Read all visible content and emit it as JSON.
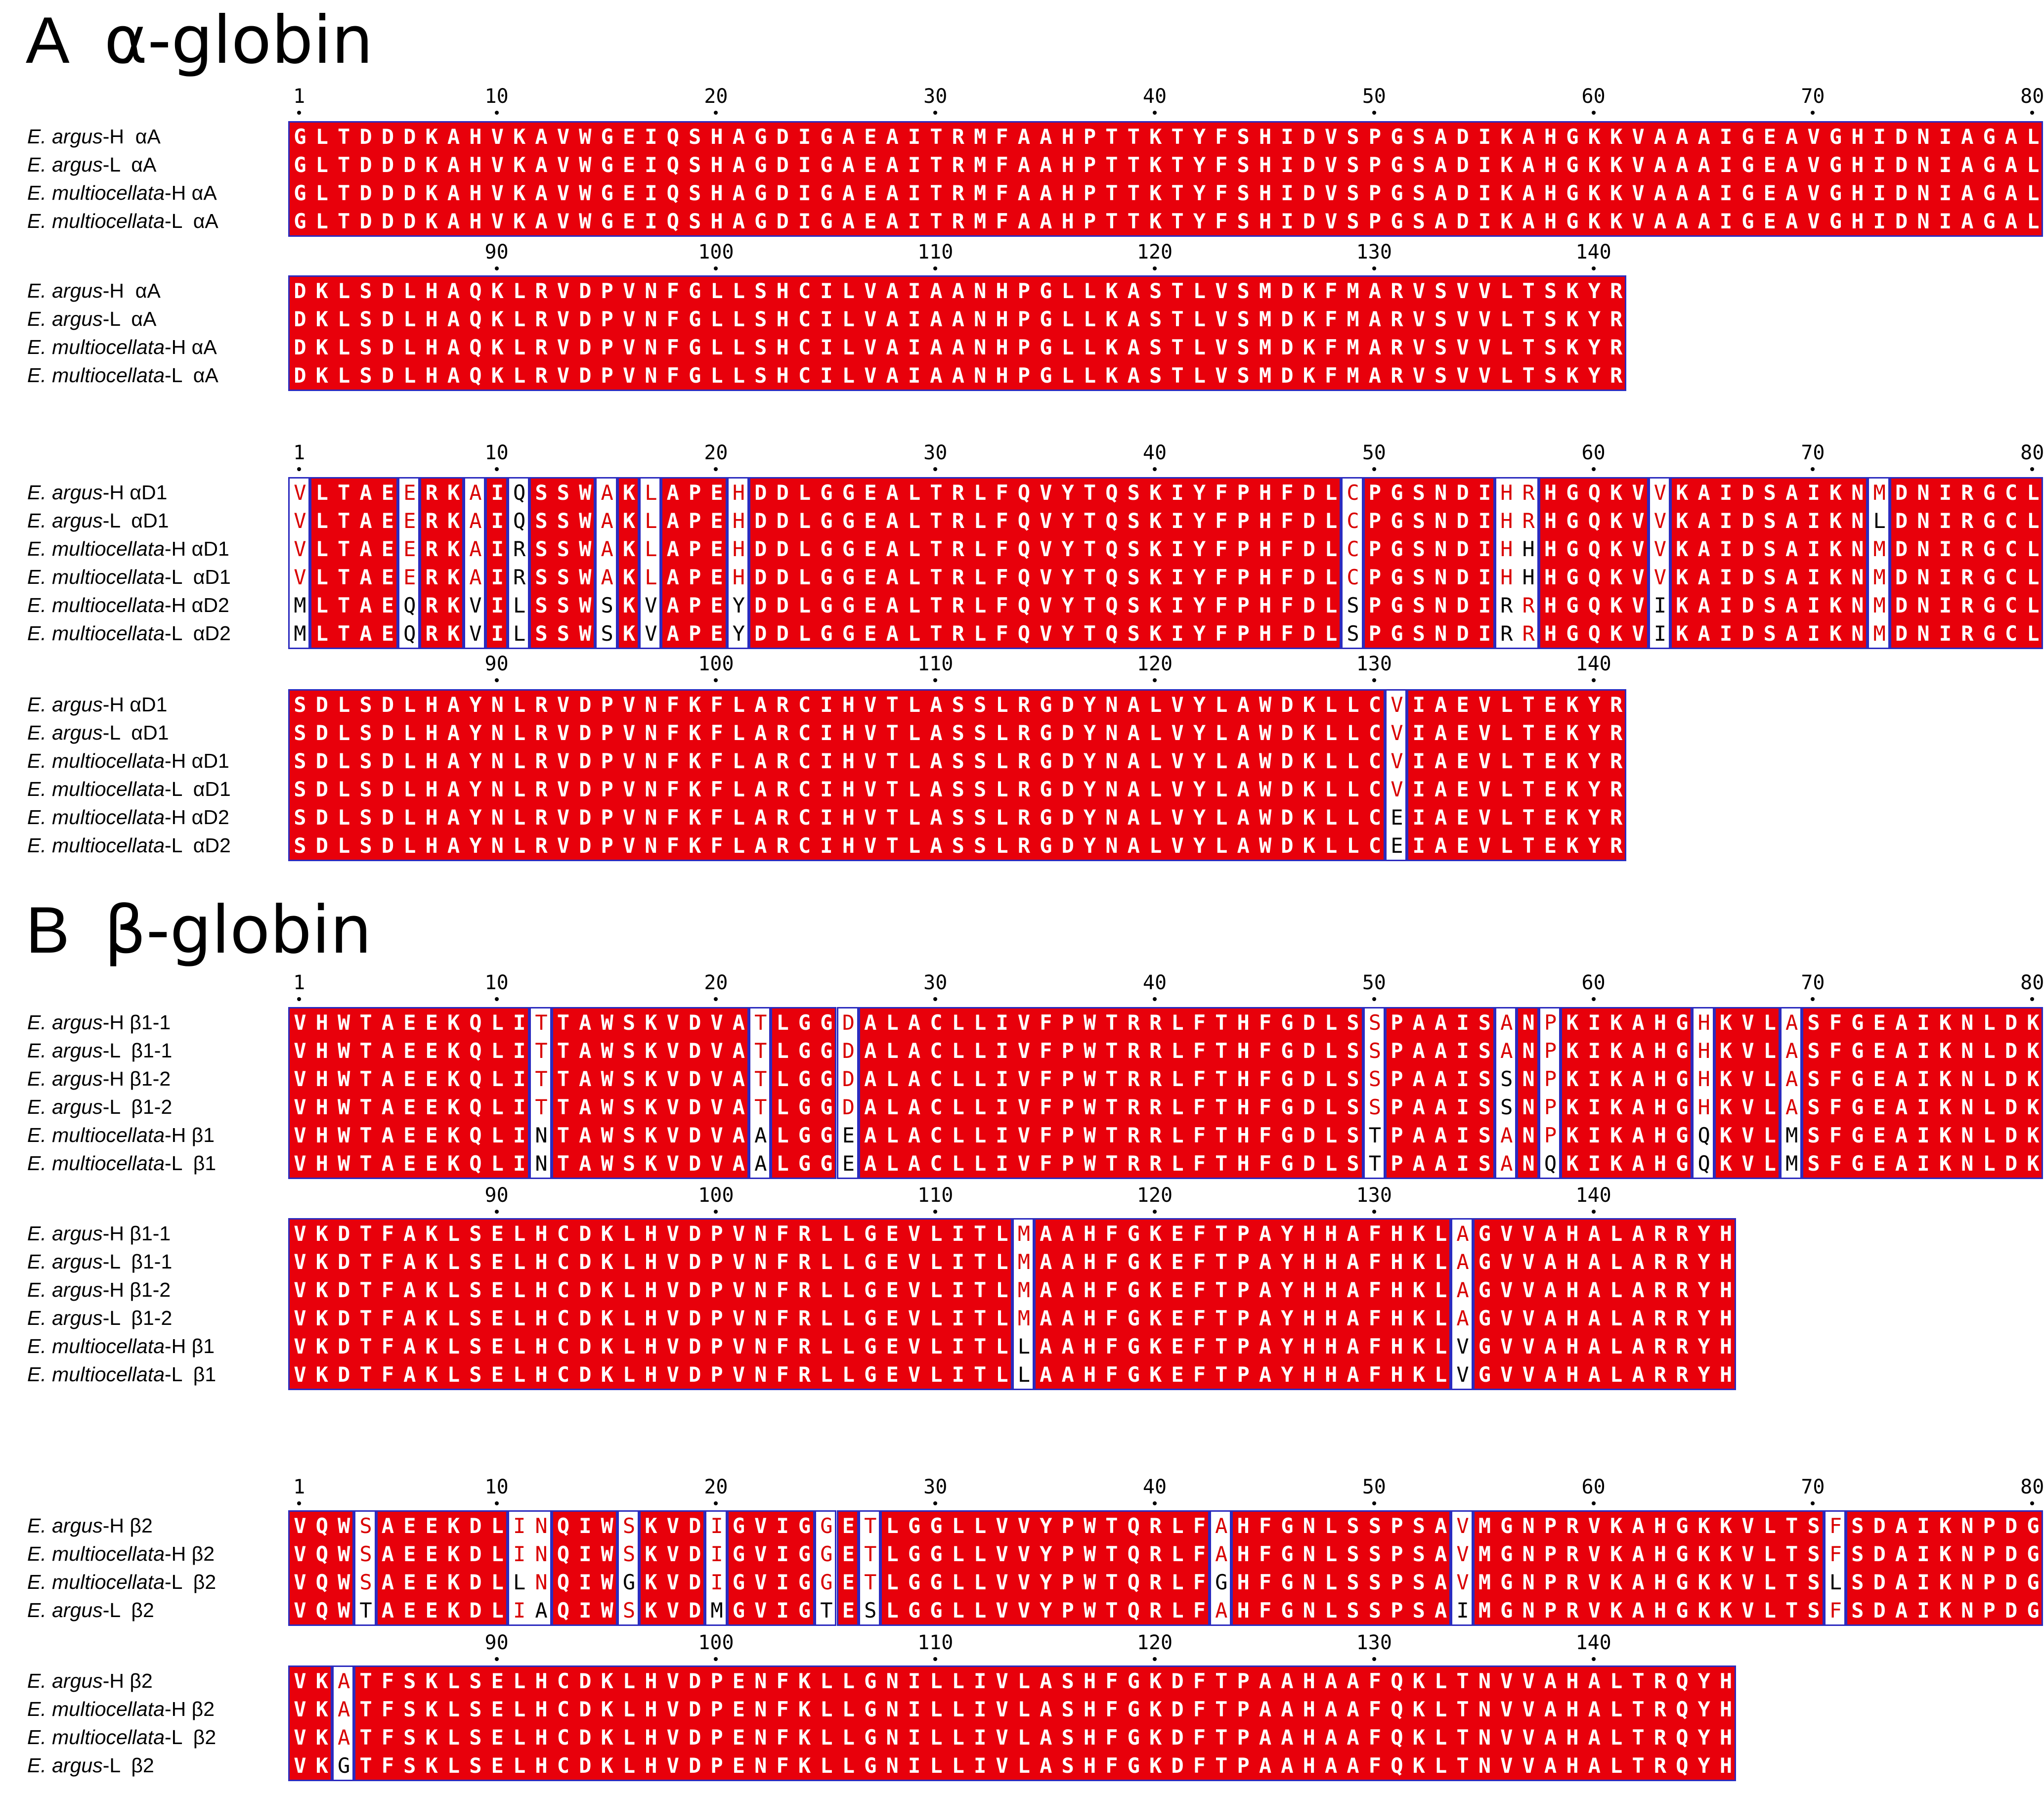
{
  "panels": [
    {
      "title_letter": "A",
      "title_name": "α-globin",
      "blocks": [
        {
          "ruler_numbers": [
            1,
            10,
            20,
            30,
            40,
            50,
            60,
            70,
            80
          ],
          "ruler2_numbers": [
            90,
            100,
            110,
            120,
            130,
            140
          ],
          "rows": [
            {
              "species": "E. argus",
              "suffix": "-H  αA",
              "seq1": "GLTDDDKAHVKAVWGEIQSHAGDIGAEAITRMFAAHPTTKTYFSHIDVSPGSADIKAHGKKVAAAIGEAVGHIDNIAGAL",
              "seq2": "DKLSDLHAQKLRVDPVNFGLLSHCILVAIAANHPGLLKASTLVSMDKFMARVSVVLTSKYR"
            },
            {
              "species": "E. argus",
              "suffix": "-L  αA",
              "seq1": "GLTDDDKAHVKAVWGEIQSHAGDIGAEAITRMFAAHPTTKTYFSHIDVSPGSADIKAHGKKVAAAIGEAVGHIDNIAGAL",
              "seq2": "DKLSDLHAQKLRVDPVNFGLLSHCILVAIAANHPGLLKASTLVSMDKFMARVSVVLTSKYR"
            },
            {
              "species": "E. multiocellata",
              "suffix": "-H αA",
              "seq1": "GLTDDDKAHVKAVWGEIQSHAGDIGAEAITRMFAAHPTTKTYFSHIDVSPGSADIKAHGKKVAAAIGEAVGHIDNIAGAL",
              "seq2": "DKLSDLHAQKLRVDPVNFGLLSHCILVAIAANHPGLLKASTLVSMDKFMARVSVVLTSKYR"
            },
            {
              "species": "E. multiocellata",
              "suffix": "-L  αA",
              "seq1": "GLTDDDKAHVKAVWGEIQSHAGDIGAEAITRMFAAHPTTKTYFSHIDVSPGSADIKAHGKKVAAAIGEAVGHIDNIAGAL",
              "seq2": "DKLSDLHAQKLRVDPVNFGLLSHCILVAIAANHPGLLKASTLVSMDKFMARVSVVLTSKYR"
            }
          ]
        },
        {
          "ruler_numbers": [
            1,
            10,
            20,
            30,
            40,
            50,
            60,
            70,
            80
          ],
          "ruler2_numbers": [
            90,
            100,
            110,
            120,
            130,
            140
          ],
          "rows": [
            {
              "species": "E. argus",
              "suffix": "-H αD1",
              "seq1": "VLTAEERKAIQSSWAKLAPEHDDLGGEALTRLFQVYTQSKIYFPHFDLCPGSNDIHRHGQKVVKAIDSAIKNMDNIRGCL",
              "seq2": "SDLSDLHAYNLRVDPVNFKFLARCIHVTLASSLRGDYNALVYLAWDKLLCVIAEVLTEKYR"
            },
            {
              "species": "E. argus",
              "suffix": "-L  αD1",
              "seq1": "VLTAEERKAIQSSWAKLAPEHDDLGGEALTRLFQVYTQSKIYFPHFDLCPGSNDIHRHGQKVVKAIDSAIKNLDNIRGCL",
              "seq2": "SDLSDLHAYNLRVDPVNFKFLARCIHVTLASSLRGDYNALVYLAWDKLLCVIAEVLTEKYR"
            },
            {
              "species": "E. multiocellata",
              "suffix": "-H αD1",
              "seq1": "VLTAEERKAIRSSWAKLAPEHDDLGGEALTRLFQVYTQSKIYFPHFDLCPGSNDIHHHGQKVVKAIDSAIKNMDNIRGCL",
              "seq2": "SDLSDLHAYNLRVDPVNFKFLARCIHVTLASSLRGDYNALVYLAWDKLLCVIAEVLTEKYR"
            },
            {
              "species": "E. multiocellata",
              "suffix": "-L  αD1",
              "seq1": "VLTAEERKAIRSSWAKLAPEHDDLGGEALTRLFQVYTQSKIYFPHFDLCPGSNDIHHHGQKVVKAIDSAIKNMDNIRGCL",
              "seq2": "SDLSDLHAYNLRVDPVNFKFLARCIHVTLASSLRGDYNALVYLAWDKLLCVIAEVLTEKYR"
            },
            {
              "species": "E. multiocellata",
              "suffix": "-H αD2",
              "seq1": "MLTAEQRKVILSSWSKVAPEYDDLGGEALTRLFQVYTQSKIYFPHFDLSPGSNDIRRHGQKVIKAIDSAIKNMDNIRGCL",
              "seq2": "SDLSDLHAYNLRVDPVNFKFLARCIHVTLASSLRGDYNALVYLAWDKLLCEIAEVLTEKYR"
            },
            {
              "species": "E. multiocellata",
              "suffix": "-L  αD2",
              "seq1": "MLTAEQRKVILSSWSKVAPEYDDLGGEALTRLFQVYTQSKIYFPHFDLSPGSNDIRRHGQKVIKAIDSAIKNMDNIRGCL",
              "seq2": "SDLSDLHAYNLRVDPVNFKFLARCIHVTLASSLRGDYNALVYLAWDKLLCEIAEVLTEKYR"
            }
          ]
        }
      ]
    },
    {
      "title_letter": "B",
      "title_name": "β-globin",
      "blocks": [
        {
          "ruler_numbers": [
            1,
            10,
            20,
            30,
            40,
            50,
            60,
            70,
            80
          ],
          "ruler2_numbers": [
            90,
            100,
            110,
            120,
            130,
            140
          ],
          "rows": [
            {
              "species": "E. argus",
              "suffix": "-H β1-1",
              "seq1": "VHWTAEEKQLITTAWSKVDVATLGGDALACLLIVFPWTRRLFTHFGDLSSPAAISANPKIKAHGHKVLASFGEAIKNLDK",
              "seq2": "VKDTFAKLSELHCDKLHVDPVNFRLLGEVLITLMAAHFGKEFTPAYHHAFHKLAGVVAHALARRYH"
            },
            {
              "species": "E. argus",
              "suffix": "-L  β1-1",
              "seq1": "VHWTAEEKQLITTAWSKVDVATLGGDALACLLIVFPWTRRLFTHFGDLSSPAAISANPKIKAHGHKVLASFGEAIKNLDK",
              "seq2": "VKDTFAKLSELHCDKLHVDPVNFRLLGEVLITLMAAHFGKEFTPAYHHAFHKLAGVVAHALARRYH"
            },
            {
              "species": "E. argus",
              "suffix": "-H β1-2",
              "seq1": "VHWTAEEKQLITTAWSKVDVATLGGDALACLLIVFPWTRRLFTHFGDLSSPAAISSNPKIKAHGHKVLASFGEAIKNLDK",
              "seq2": "VKDTFAKLSELHCDKLHVDPVNFRLLGEVLITLMAAHFGKEFTPAYHHAFHKLAGVVAHALARRYH"
            },
            {
              "species": "E. argus",
              "suffix": "-L  β1-2",
              "seq1": "VHWTAEEKQLITTAWSKVDVATLGGDALACLLIVFPWTRRLFTHFGDLSSPAAISSNPKIKAHGHKVLASFGEAIKNLDK",
              "seq2": "VKDTFAKLSELHCDKLHVDPVNFRLLGEVLITLMAAHFGKEFTPAYHHAFHKLAGVVAHALARRYH"
            },
            {
              "species": "E. multiocellata",
              "suffix": "-H β1",
              "seq1": "VHWTAEEKQLINTAWSKVDVAALGGEALACLLIVFPWTRRLFTHFGDLSTPAAISANPKIKAHGQKVLMSFGEAIKNLDK",
              "seq2": "VKDTFAKLSELHCDKLHVDPVNFRLLGEVLITLLAAHFGKEFTPAYHHAFHKLVGVVAHALARRYH"
            },
            {
              "species": "E. multiocellata",
              "suffix": "-L  β1",
              "seq1": "VHWTAEEKQLINTAWSKVDVAALGGEALACLLIVFPWTRRLFTHFGDLSTPAAISANQKIKAHGQKVLMSFGEAIKNLDK",
              "seq2": "VKDTFAKLSELHCDKLHVDPVNFRLLGEVLITLLAAHFGKEFTPAYHHAFHKLVGVVAHALARRYH"
            }
          ]
        },
        {
          "ruler_numbers": [
            1,
            10,
            20,
            30,
            40,
            50,
            60,
            70,
            80
          ],
          "ruler2_numbers": [
            90,
            100,
            110,
            120,
            130,
            140
          ],
          "rows": [
            {
              "species": "E. argus",
              "suffix": "-H β2",
              "seq1": "VQWSAEEKDLINQIWSKVDIGVIGGETLGGLLVVYPWTQRLFAHFGNLSSPSAVMGNPRVKAHGKKVLTSFSDAIKNPDG",
              "seq2": "VKATFSKLSELHCDKLHVDPENFKLLGNILLIVLASHFGKDFTPAAHAAFQKLTNVVAHALTRQYH"
            },
            {
              "species": "E. multiocellata",
              "suffix": "-H β2",
              "seq1": "VQWSAEEKDLINQIWSKVDIGVIGGETLGGLLVVYPWTQRLFAHFGNLSSPSAVMGNPRVKAHGKKVLTSFSDAIKNPDG",
              "seq2": "VKATFSKLSELHCDKLHVDPENFKLLGNILLIVLASHFGKDFTPAAHAAFQKLTNVVAHALTRQYH"
            },
            {
              "species": "E. multiocellata",
              "suffix": "-L  β2",
              "seq1": "VQWSAEEKDLLNQIWGKVDIGVIGGETLGGLLVVYPWTQRLFGHFGNLSSPSAVMGNPRVKAHGKKVLTSLSDAIKNPDG",
              "seq2": "VKATFSKLSELHCDKLHVDPENFKLLGNILLIVLASHFGKDFTPAAHAAFQKLTNVVAHALTRQYH"
            },
            {
              "species": "E. argus",
              "suffix": "-L  β2",
              "seq1": "VQWTAEEKDLIAQIWSKVDMGVIGTESLGGLLVVYPWTQRLFAHFGNLSSPSAIMGNPRVKAHGKKVLTSFSDAIKNPDG",
              "seq2": "VKGTFSKLSELHCDKLHVDPENFKLLGNILLIVLASHFGKDFTPAAHAAFQKLTNVVAHALTRQYH"
            }
          ]
        }
      ]
    }
  ],
  "colors": {
    "conserved_bg": "#e8000b",
    "box_border": "#2b2bbf",
    "similar_text": "#d90000",
    "variable_text": "#000000"
  }
}
